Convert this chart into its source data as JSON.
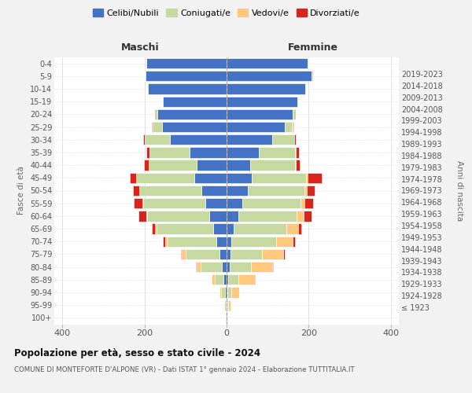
{
  "age_groups": [
    "100+",
    "95-99",
    "90-94",
    "85-89",
    "80-84",
    "75-79",
    "70-74",
    "65-69",
    "60-64",
    "55-59",
    "50-54",
    "45-49",
    "40-44",
    "35-39",
    "30-34",
    "25-29",
    "20-24",
    "15-19",
    "10-14",
    "5-9",
    "0-4"
  ],
  "birth_years": [
    "≤ 1923",
    "1924-1928",
    "1929-1933",
    "1934-1938",
    "1939-1943",
    "1944-1948",
    "1949-1953",
    "1954-1958",
    "1959-1963",
    "1964-1968",
    "1969-1973",
    "1974-1978",
    "1979-1983",
    "1984-1988",
    "1989-1993",
    "1994-1998",
    "1999-2003",
    "2004-2008",
    "2009-2013",
    "2014-2018",
    "2019-2023"
  ],
  "male": {
    "celibi": [
      2,
      2,
      3,
      7,
      12,
      18,
      25,
      32,
      42,
      52,
      62,
      78,
      72,
      90,
      138,
      158,
      168,
      155,
      192,
      198,
      196
    ],
    "coniugati": [
      1,
      3,
      10,
      22,
      52,
      82,
      118,
      138,
      152,
      152,
      150,
      142,
      118,
      98,
      62,
      22,
      8,
      3,
      2,
      2,
      2
    ],
    "vedovi": [
      0,
      1,
      4,
      7,
      9,
      9,
      7,
      4,
      2,
      2,
      1,
      1,
      0,
      0,
      0,
      1,
      0,
      0,
      0,
      0,
      0
    ],
    "divorziati": [
      0,
      0,
      0,
      1,
      2,
      2,
      5,
      8,
      18,
      20,
      15,
      15,
      12,
      8,
      3,
      2,
      1,
      0,
      0,
      0,
      0
    ]
  },
  "female": {
    "nubili": [
      1,
      1,
      2,
      4,
      7,
      9,
      12,
      18,
      28,
      38,
      52,
      62,
      58,
      78,
      112,
      142,
      162,
      172,
      192,
      208,
      198
    ],
    "coniugate": [
      1,
      3,
      10,
      25,
      52,
      78,
      108,
      128,
      142,
      142,
      138,
      132,
      108,
      88,
      52,
      18,
      6,
      2,
      2,
      2,
      2
    ],
    "vedove": [
      1,
      5,
      18,
      38,
      52,
      52,
      42,
      28,
      18,
      10,
      6,
      4,
      2,
      2,
      1,
      1,
      0,
      0,
      0,
      0,
      0
    ],
    "divorziate": [
      0,
      0,
      1,
      2,
      3,
      3,
      5,
      8,
      20,
      20,
      18,
      35,
      10,
      8,
      3,
      2,
      1,
      0,
      0,
      0,
      0
    ]
  },
  "colors": {
    "celibi": "#4472c4",
    "coniugati": "#c5d9a0",
    "vedovi": "#ffc87c",
    "divorziati": "#d9241c"
  },
  "xlim": 420,
  "title_main": "Popolazione per età, sesso e stato civile - 2024",
  "title_sub": "COMUNE DI MONTEFORTE D'ALPONE (VR) - Dati ISTAT 1° gennaio 2024 - Elaborazione TUTTITALIA.IT",
  "ylabel_left": "Fasce di età",
  "ylabel_right": "Anni di nascita",
  "header_left": "Maschi",
  "header_right": "Femmine",
  "bg_color": "#f2f2f2",
  "plot_bg": "#ffffff",
  "legend_labels": [
    "Celibi/Nubili",
    "Coniugati/e",
    "Vedovi/e",
    "Divorziati/e"
  ]
}
